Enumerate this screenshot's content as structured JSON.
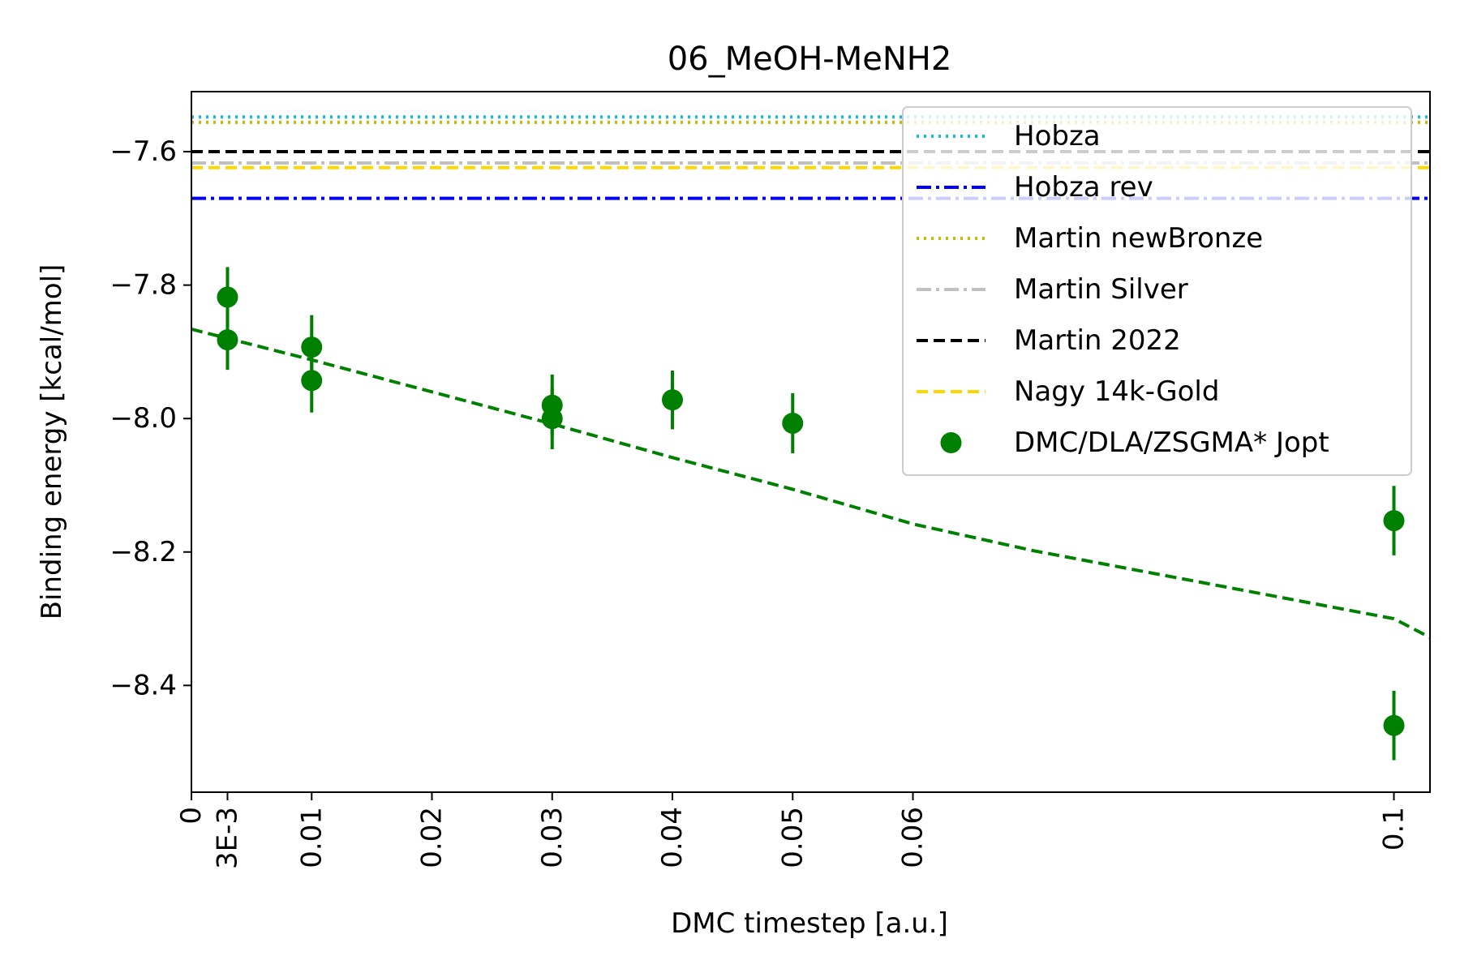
{
  "chart_data": {
    "type": "scatter",
    "title": "06_MeOH-MeNH2",
    "xlabel": "DMC timestep [a.u.]",
    "ylabel": "Binding energy [kcal/mol]",
    "xlim": [
      0,
      0.103
    ],
    "ylim": [
      -8.56,
      -7.51
    ],
    "x_ticks": [
      {
        "value": 0,
        "label": "0"
      },
      {
        "value": 0.003,
        "label": "3E-3"
      },
      {
        "value": 0.01,
        "label": "0.01"
      },
      {
        "value": 0.02,
        "label": "0.02"
      },
      {
        "value": 0.03,
        "label": "0.03"
      },
      {
        "value": 0.04,
        "label": "0.04"
      },
      {
        "value": 0.05,
        "label": "0.05"
      },
      {
        "value": 0.06,
        "label": "0.06"
      },
      {
        "value": 0.1,
        "label": "0.1"
      }
    ],
    "y_ticks": [
      {
        "value": -7.6,
        "label": "−7.6"
      },
      {
        "value": -7.8,
        "label": "−7.8"
      },
      {
        "value": -8.0,
        "label": "−8.0"
      },
      {
        "value": -8.2,
        "label": "−8.2"
      },
      {
        "value": -8.4,
        "label": "−8.4"
      }
    ],
    "reference_lines": [
      {
        "name": "Hobza",
        "y": -7.548,
        "color": "#17becf",
        "style": "dotted"
      },
      {
        "name": "Hobza rev",
        "y": -7.67,
        "color": "#0000ff",
        "style": "dashdot"
      },
      {
        "name": "Martin newBronze",
        "y": -7.556,
        "color": "#bfbf00",
        "style": "dotted"
      },
      {
        "name": "Martin Silver",
        "y": -7.617,
        "color": "#c0c0c0",
        "style": "dashdot"
      },
      {
        "name": "Martin 2022",
        "y": -7.6,
        "color": "#000000",
        "style": "dashed"
      },
      {
        "name": "Nagy 14k-Gold",
        "y": -7.624,
        "color": "#ffd700",
        "style": "dashed"
      }
    ],
    "series": [
      {
        "name": "DMC/DLA/ZSGMA* Jopt",
        "color": "#008000",
        "points": [
          {
            "x": 0.003,
            "y": -7.818,
            "err": 0.045
          },
          {
            "x": 0.003,
            "y": -7.882,
            "err": 0.045
          },
          {
            "x": 0.01,
            "y": -7.893,
            "err": 0.048
          },
          {
            "x": 0.01,
            "y": -7.943,
            "err": 0.048
          },
          {
            "x": 0.03,
            "y": -7.98,
            "err": 0.046
          },
          {
            "x": 0.03,
            "y": -8.0,
            "err": 0.046
          },
          {
            "x": 0.04,
            "y": -7.972,
            "err": 0.044
          },
          {
            "x": 0.05,
            "y": -8.007,
            "err": 0.045
          },
          {
            "x": 0.1,
            "y": -8.153,
            "err": 0.052
          },
          {
            "x": 0.1,
            "y": -8.46,
            "err": 0.052
          }
        ]
      }
    ],
    "fit_line": {
      "color": "#008000",
      "style": "dashed",
      "points": [
        {
          "x": 0,
          "y": -7.866
        },
        {
          "x": 0.01,
          "y": -7.912
        },
        {
          "x": 0.02,
          "y": -7.96
        },
        {
          "x": 0.03,
          "y": -8.008
        },
        {
          "x": 0.04,
          "y": -8.0585
        },
        {
          "x": 0.05,
          "y": -8.106
        },
        {
          "x": 0.06,
          "y": -8.158
        },
        {
          "x": 0.07,
          "y": -8.198
        },
        {
          "x": 0.08,
          "y": -8.232
        },
        {
          "x": 0.09,
          "y": -8.266
        },
        {
          "x": 0.1,
          "y": -8.3
        },
        {
          "x": 0.103,
          "y": -8.328
        }
      ]
    },
    "legend_placement": "top-right",
    "grid": false
  }
}
